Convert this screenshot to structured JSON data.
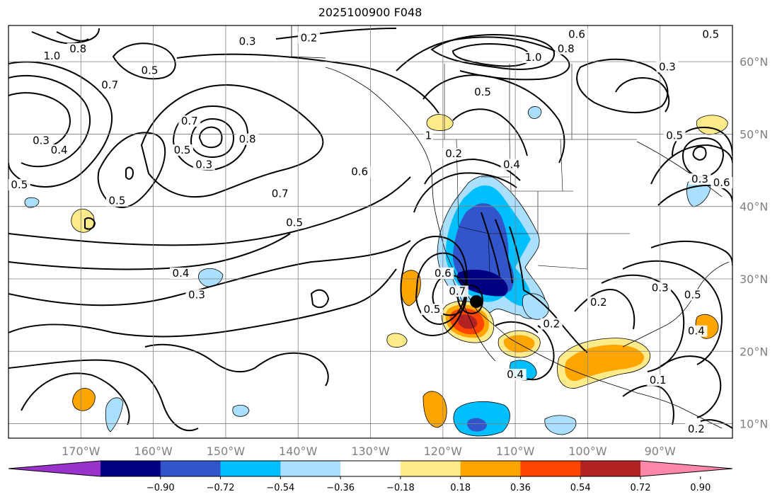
{
  "title": "2025100900 F048",
  "chart_data": {
    "type": "map",
    "title": "2025100900 F048",
    "lon_range": [
      -180,
      -80
    ],
    "lat_range": [
      8,
      65
    ],
    "grid": true,
    "lon_ticks": [
      {
        "value": -170,
        "label": "170°W"
      },
      {
        "value": -160,
        "label": "160°W"
      },
      {
        "value": -150,
        "label": "150°W"
      },
      {
        "value": -140,
        "label": "140°W"
      },
      {
        "value": -130,
        "label": "130°W"
      },
      {
        "value": -120,
        "label": "120°W"
      },
      {
        "value": -110,
        "label": "110°W"
      },
      {
        "value": -100,
        "label": "100°W"
      },
      {
        "value": -90,
        "label": "90°W"
      }
    ],
    "lat_ticks": [
      {
        "value": 60,
        "label": "60°N"
      },
      {
        "value": 50,
        "label": "50°N"
      },
      {
        "value": 40,
        "label": "40°N"
      },
      {
        "value": 30,
        "label": "30°N"
      },
      {
        "value": 20,
        "label": "20°N"
      },
      {
        "value": 10,
        "label": "10°N"
      }
    ],
    "colorbar": {
      "levels": [
        -0.9,
        -0.72,
        -0.54,
        -0.36,
        -0.18,
        0.18,
        0.36,
        0.54,
        0.72,
        0.9
      ],
      "labels": [
        "−0.90",
        "−0.72",
        "−0.54",
        "−0.36",
        "−0.18",
        "0.18",
        "0.36",
        "0.54",
        "0.72",
        "0.90"
      ],
      "colors": [
        "#9933cc",
        "#000080",
        "#3355cc",
        "#00bfff",
        "#aadfff",
        "#ffffff",
        "#ffeb8a",
        "#ffa500",
        "#ff4500",
        "#b22222",
        "#ff88aa"
      ],
      "extend": "both"
    },
    "contour_labels": [
      {
        "text": "1.0",
        "lon": -174,
        "lat": 60.5
      },
      {
        "text": "0.8",
        "lon": -170.4,
        "lat": 61.5
      },
      {
        "text": "0.7",
        "lon": -166,
        "lat": 56.5
      },
      {
        "text": "0.5",
        "lon": -160.5,
        "lat": 58.5
      },
      {
        "text": "0.3",
        "lon": -147,
        "lat": 62.5
      },
      {
        "text": "0.2",
        "lon": -138.5,
        "lat": 63
      },
      {
        "text": "0.3",
        "lon": -175.5,
        "lat": 48.8
      },
      {
        "text": "0.4",
        "lon": -173,
        "lat": 47.5
      },
      {
        "text": "0.5",
        "lon": -178.5,
        "lat": 42.7
      },
      {
        "text": "0.5",
        "lon": -165,
        "lat": 40.5
      },
      {
        "text": "0.5",
        "lon": -156,
        "lat": 47.5
      },
      {
        "text": "0.3",
        "lon": -153,
        "lat": 45.5
      },
      {
        "text": "0.7",
        "lon": -155,
        "lat": 51.5
      },
      {
        "text": "0.8",
        "lon": -147,
        "lat": 49
      },
      {
        "text": "0.7",
        "lon": -142.5,
        "lat": 41.5
      },
      {
        "text": "0.6",
        "lon": -131.5,
        "lat": 44.5
      },
      {
        "text": "0.5",
        "lon": -140.5,
        "lat": 37.5
      },
      {
        "text": "0.4",
        "lon": -156.2,
        "lat": 30.5
      },
      {
        "text": "0.3",
        "lon": -154,
        "lat": 27.5
      },
      {
        "text": "1.0",
        "lon": -107.5,
        "lat": 60.3
      },
      {
        "text": "0.8",
        "lon": -103,
        "lat": 61.5
      },
      {
        "text": "0.6",
        "lon": -101.5,
        "lat": 63.5
      },
      {
        "text": "0.3",
        "lon": -89,
        "lat": 59
      },
      {
        "text": "0.5",
        "lon": -83,
        "lat": 63.5
      },
      {
        "text": "0.5",
        "lon": -114.5,
        "lat": 55.5
      },
      {
        "text": "1",
        "lon": -122,
        "lat": 49.5
      },
      {
        "text": "0.2",
        "lon": -118.5,
        "lat": 47
      },
      {
        "text": "0.4",
        "lon": -110.5,
        "lat": 45.5
      },
      {
        "text": "0.5",
        "lon": -88,
        "lat": 49.5
      },
      {
        "text": "0.3",
        "lon": -84.5,
        "lat": 43.5
      },
      {
        "text": "0.6",
        "lon": -81.5,
        "lat": 43
      },
      {
        "text": "0.6",
        "lon": -120,
        "lat": 30.5
      },
      {
        "text": "0.7",
        "lon": -118,
        "lat": 28
      },
      {
        "text": "0.5",
        "lon": -121.5,
        "lat": 25.5
      },
      {
        "text": "0.2",
        "lon": -105,
        "lat": 23.5
      },
      {
        "text": "0.4",
        "lon": -110,
        "lat": 16.5
      },
      {
        "text": "0.2",
        "lon": -98.5,
        "lat": 26.5
      },
      {
        "text": "0.3",
        "lon": -90,
        "lat": 28.5
      },
      {
        "text": "0.5",
        "lon": -85.5,
        "lat": 27.5
      },
      {
        "text": "0.4",
        "lon": -85,
        "lat": 22.5
      },
      {
        "text": "0.1",
        "lon": -90.3,
        "lat": 15.7
      },
      {
        "text": "0.2",
        "lon": -85,
        "lat": 9
      }
    ]
  }
}
